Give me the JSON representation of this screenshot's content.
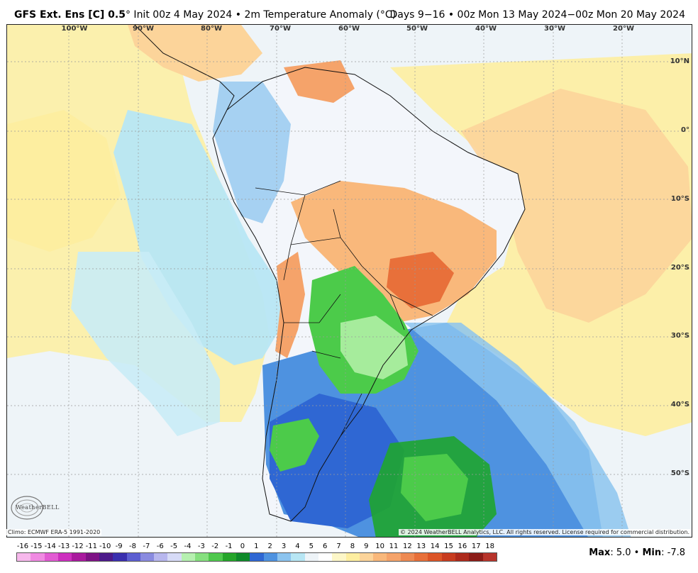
{
  "header": {
    "model": "GFS Ext.  Ens [C] 0.5",
    "degree": "°",
    "init": " Init 00z 4 May 2024",
    "bullet": " • ",
    "field": "2m Temperature Anomaly (°C)",
    "valid": "Days 9−16 • 00z Mon 13 May 2024−00z Mon 20 May 2024"
  },
  "map": {
    "lon_labels": [
      "100°W",
      "90°W",
      "80°W",
      "70°W",
      "60°W",
      "50°W",
      "40°W",
      "30°W",
      "20°W"
    ],
    "lat_labels": [
      "10°N",
      "0°",
      "10°S",
      "20°S",
      "30°S",
      "40°S",
      "50°S"
    ],
    "colors": {
      "ocean_neutral": "#eef4f8",
      "warm_light": "#fdeea0",
      "warm_mid": "#fcd49a",
      "warm_orange": "#f5a36a",
      "warm_dark": "#e8703a",
      "cool_light": "#b7e6f4",
      "cool_mid": "#8cc4ef",
      "cool_blue": "#4e92e0",
      "cool_dark": "#2f67d3",
      "green_light": "#a6ec9c",
      "green_mid": "#4ccb4a",
      "green_dark": "#1fa52f",
      "land_neutral": "#f3f6fb",
      "border": "#111111",
      "grid": "#9a9a9a"
    }
  },
  "footer": {
    "climo": "Climo: ECMWF ERA-5 1991-2020",
    "copyright": "© 2024 WeatherBELL Analytics, LLC. All rights reserved. License required for commercial distribution.",
    "logo_text": "WeatherBELL"
  },
  "colorbar": {
    "labels": [
      "-16",
      "-15",
      "-14",
      "-13",
      "-12",
      "-11",
      "-10",
      "-9",
      "-8",
      "-7",
      "-6",
      "-5",
      "-4",
      "-3",
      "-2",
      "-1",
      "0",
      "1",
      "2",
      "3",
      "4",
      "5",
      "6",
      "7",
      "8",
      "9",
      "10",
      "11",
      "12",
      "13",
      "14",
      "15",
      "16",
      "17",
      "18"
    ],
    "colors": [
      "#f7b8ec",
      "#f08ae2",
      "#e25bd3",
      "#cd2fbf",
      "#a91a9e",
      "#7e1285",
      "#4c1a8a",
      "#3a2fae",
      "#5c5ed1",
      "#8a8be0",
      "#b8b7ee",
      "#d7dbf7",
      "#b6f0b0",
      "#86e07f",
      "#4fc84d",
      "#25a52a",
      "#0f8a2a",
      "#2f67d3",
      "#4e92e0",
      "#8cc4ef",
      "#b7e6f4",
      "#eef4f8",
      "#ffffff",
      "#fdf7c8",
      "#fdeea0",
      "#fcd49a",
      "#f9b87b",
      "#f5a36a",
      "#ee8a53",
      "#e8703a",
      "#dc5527",
      "#c83c1f",
      "#ad2a1c",
      "#8c1c18",
      "#b7342b"
    ]
  },
  "stats": {
    "max_label": "Max",
    "max_value": ": 5.0",
    "sep": " • ",
    "min_label": "Min",
    "min_value": ": -7.8"
  }
}
